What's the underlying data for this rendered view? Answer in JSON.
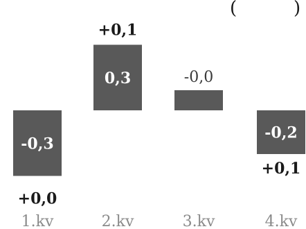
{
  "title_fragment": "(",
  "title_fragment_right": ")",
  "chart_data": {
    "type": "bar",
    "categories": [
      "1.kv",
      "2.kv",
      "3.kv",
      "4.kv"
    ],
    "values": [
      -0.3,
      0.3,
      -0.0,
      -0.2
    ],
    "value_labels": [
      "-0,3",
      "0,3",
      "-0,0",
      "-0,2"
    ],
    "delta_labels": [
      "+0,0",
      "+0,1",
      "",
      "+0,1"
    ],
    "ylim": [
      -0.4,
      0.4
    ],
    "grid": false,
    "legend": "none"
  },
  "colors": {
    "bar": "#595959",
    "inside_label": "#ffffff",
    "delta_label": "#1a1a1a",
    "tick_label": "#8a8a8a"
  }
}
